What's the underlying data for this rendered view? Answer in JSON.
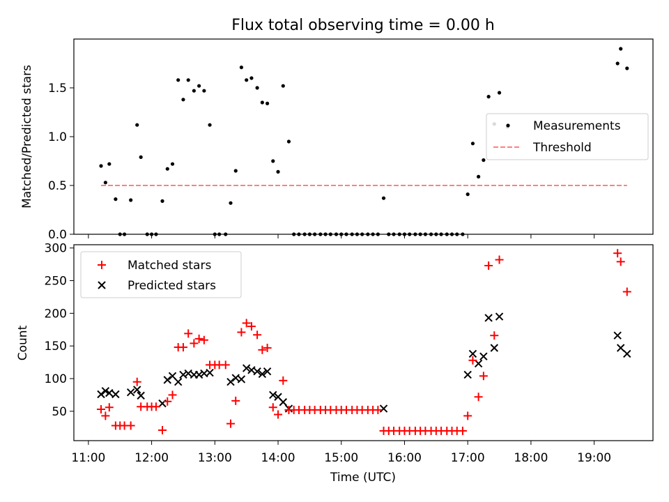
{
  "chart_data": [
    {
      "type": "scatter",
      "title": "Flux total observing time = 0.00 h",
      "xlabel": "",
      "ylabel": "Matched/Predicted stars",
      "ylim": [
        0,
        2.0
      ],
      "yticks": [
        "0.0",
        "0.5",
        "1.0",
        "1.5"
      ],
      "ytick_values": [
        0,
        0.5,
        1.0,
        1.5
      ],
      "legend_placement": "center-right",
      "series": [
        {
          "name": "Measurements",
          "kind": "dot",
          "color": "#000000",
          "points": [
            [
              11.2,
              0.7
            ],
            [
              11.27,
              0.53
            ],
            [
              11.33,
              0.72
            ],
            [
              11.43,
              0.36
            ],
            [
              11.5,
              0
            ],
            [
              11.57,
              0
            ],
            [
              11.67,
              0.35
            ],
            [
              11.77,
              1.12
            ],
            [
              11.83,
              0.79
            ],
            [
              11.93,
              0
            ],
            [
              12.0,
              0
            ],
            [
              12.07,
              0
            ],
            [
              12.17,
              0.34
            ],
            [
              12.25,
              0.67
            ],
            [
              12.33,
              0.72
            ],
            [
              12.42,
              1.58
            ],
            [
              12.5,
              1.38
            ],
            [
              12.58,
              1.58
            ],
            [
              12.67,
              1.47
            ],
            [
              12.75,
              1.52
            ],
            [
              12.83,
              1.47
            ],
            [
              12.92,
              1.12
            ],
            [
              13.0,
              0
            ],
            [
              13.07,
              0
            ],
            [
              13.17,
              0
            ],
            [
              13.25,
              0.32
            ],
            [
              13.33,
              0.65
            ],
            [
              13.42,
              1.71
            ],
            [
              13.5,
              1.58
            ],
            [
              13.58,
              1.6
            ],
            [
              13.67,
              1.5
            ],
            [
              13.75,
              1.35
            ],
            [
              13.83,
              1.34
            ],
            [
              13.92,
              0.75
            ],
            [
              14.0,
              0.64
            ],
            [
              14.08,
              1.52
            ],
            [
              14.17,
              0.95
            ],
            [
              14.25,
              0
            ],
            [
              14.33,
              0
            ],
            [
              14.42,
              0
            ],
            [
              14.5,
              0
            ],
            [
              14.58,
              0
            ],
            [
              14.67,
              0
            ],
            [
              14.75,
              0
            ],
            [
              14.83,
              0
            ],
            [
              14.92,
              0
            ],
            [
              15.0,
              0
            ],
            [
              15.08,
              0
            ],
            [
              15.17,
              0
            ],
            [
              15.25,
              0
            ],
            [
              15.33,
              0
            ],
            [
              15.42,
              0
            ],
            [
              15.5,
              0
            ],
            [
              15.58,
              0
            ],
            [
              15.67,
              0.37
            ],
            [
              15.75,
              0
            ],
            [
              15.83,
              0
            ],
            [
              15.92,
              0
            ],
            [
              16.0,
              0
            ],
            [
              16.08,
              0
            ],
            [
              16.17,
              0
            ],
            [
              16.25,
              0
            ],
            [
              16.33,
              0
            ],
            [
              16.42,
              0
            ],
            [
              16.5,
              0
            ],
            [
              16.58,
              0
            ],
            [
              16.67,
              0
            ],
            [
              16.75,
              0
            ],
            [
              16.83,
              0
            ],
            [
              16.92,
              0
            ],
            [
              17.0,
              0.41
            ],
            [
              17.08,
              0.93
            ],
            [
              17.17,
              0.59
            ],
            [
              17.25,
              0.76
            ],
            [
              17.33,
              1.41
            ],
            [
              17.42,
              1.13
            ],
            [
              17.5,
              1.45
            ],
            [
              17.63,
              1.1
            ],
            [
              19.37,
              1.75
            ],
            [
              19.42,
              1.9
            ],
            [
              19.52,
              1.7
            ]
          ]
        },
        {
          "name": "Threshold",
          "kind": "line",
          "color": "#ff7f7f",
          "x": [
            11.2,
            19.52
          ],
          "y": [
            0.5,
            0.5
          ]
        }
      ]
    },
    {
      "type": "scatter",
      "title": "",
      "xlabel": "Time (UTC)",
      "ylabel": "Count",
      "ylim": [
        5,
        305
      ],
      "yticks": [
        "50",
        "100",
        "150",
        "200",
        "250",
        "300"
      ],
      "ytick_values": [
        50,
        100,
        150,
        200,
        250,
        300
      ],
      "xlim": [
        10.77,
        19.93
      ],
      "xticks": [
        "11:00",
        "12:00",
        "13:00",
        "14:00",
        "15:00",
        "16:00",
        "17:00",
        "18:00",
        "19:00"
      ],
      "xtick_values": [
        11,
        12,
        13,
        14,
        15,
        16,
        17,
        18,
        19
      ],
      "legend_placement": "top-left",
      "series": [
        {
          "name": "Matched stars",
          "kind": "plus",
          "color": "#ff0000",
          "points": [
            [
              11.2,
              53
            ],
            [
              11.27,
              43
            ],
            [
              11.33,
              56
            ],
            [
              11.43,
              28
            ],
            [
              11.5,
              28
            ],
            [
              11.57,
              28
            ],
            [
              11.67,
              28
            ],
            [
              11.77,
              95
            ],
            [
              11.83,
              57
            ],
            [
              11.93,
              57
            ],
            [
              12.0,
              57
            ],
            [
              12.07,
              57
            ],
            [
              12.17,
              21
            ],
            [
              12.25,
              65
            ],
            [
              12.33,
              75
            ],
            [
              12.42,
              148
            ],
            [
              12.5,
              148
            ],
            [
              12.58,
              169
            ],
            [
              12.67,
              154
            ],
            [
              12.75,
              161
            ],
            [
              12.83,
              159
            ],
            [
              12.92,
              121
            ],
            [
              13.0,
              121
            ],
            [
              13.07,
              121
            ],
            [
              13.17,
              121
            ],
            [
              13.25,
              31
            ],
            [
              13.33,
              66
            ],
            [
              13.42,
              171
            ],
            [
              13.5,
              185
            ],
            [
              13.58,
              180
            ],
            [
              13.67,
              167
            ],
            [
              13.75,
              144
            ],
            [
              13.83,
              147
            ],
            [
              13.92,
              56
            ],
            [
              14.0,
              45
            ],
            [
              14.08,
              97
            ],
            [
              14.17,
              52
            ],
            [
              14.25,
              52
            ],
            [
              14.33,
              52
            ],
            [
              14.42,
              52
            ],
            [
              14.5,
              52
            ],
            [
              14.58,
              52
            ],
            [
              14.67,
              52
            ],
            [
              14.75,
              52
            ],
            [
              14.83,
              52
            ],
            [
              14.92,
              52
            ],
            [
              15.0,
              52
            ],
            [
              15.08,
              52
            ],
            [
              15.17,
              52
            ],
            [
              15.25,
              52
            ],
            [
              15.33,
              52
            ],
            [
              15.42,
              52
            ],
            [
              15.5,
              52
            ],
            [
              15.58,
              52
            ],
            [
              15.67,
              20
            ],
            [
              15.75,
              20
            ],
            [
              15.83,
              20
            ],
            [
              15.92,
              20
            ],
            [
              16.0,
              20
            ],
            [
              16.08,
              20
            ],
            [
              16.17,
              20
            ],
            [
              16.25,
              20
            ],
            [
              16.33,
              20
            ],
            [
              16.42,
              20
            ],
            [
              16.5,
              20
            ],
            [
              16.58,
              20
            ],
            [
              16.67,
              20
            ],
            [
              16.75,
              20
            ],
            [
              16.83,
              20
            ],
            [
              16.92,
              20
            ],
            [
              17.0,
              43
            ],
            [
              17.08,
              128
            ],
            [
              17.17,
              72
            ],
            [
              17.25,
              104
            ],
            [
              17.33,
              273
            ],
            [
              17.42,
              166
            ],
            [
              17.5,
              282
            ],
            [
              19.37,
              292
            ],
            [
              19.42,
              279
            ],
            [
              19.52,
              233
            ]
          ]
        },
        {
          "name": "Predicted stars",
          "kind": "x",
          "color": "#000000",
          "points": [
            [
              11.2,
              76
            ],
            [
              11.27,
              81
            ],
            [
              11.33,
              78
            ],
            [
              11.43,
              76
            ],
            [
              11.67,
              79
            ],
            [
              11.77,
              83
            ],
            [
              11.83,
              74
            ],
            [
              12.17,
              62
            ],
            [
              12.25,
              98
            ],
            [
              12.33,
              104
            ],
            [
              12.42,
              95
            ],
            [
              12.5,
              106
            ],
            [
              12.58,
              108
            ],
            [
              12.67,
              106
            ],
            [
              12.75,
              106
            ],
            [
              12.83,
              108
            ],
            [
              12.92,
              109
            ],
            [
              13.25,
              95
            ],
            [
              13.33,
              101
            ],
            [
              13.42,
              99
            ],
            [
              13.5,
              116
            ],
            [
              13.58,
              113
            ],
            [
              13.67,
              111
            ],
            [
              13.75,
              107
            ],
            [
              13.83,
              111
            ],
            [
              13.92,
              75
            ],
            [
              14.0,
              72
            ],
            [
              14.08,
              64
            ],
            [
              14.17,
              54
            ],
            [
              15.67,
              54
            ],
            [
              17.0,
              106
            ],
            [
              17.08,
              138
            ],
            [
              17.17,
              123
            ],
            [
              17.25,
              134
            ],
            [
              17.33,
              193
            ],
            [
              17.42,
              147
            ],
            [
              17.5,
              195
            ],
            [
              19.37,
              166
            ],
            [
              19.42,
              147
            ],
            [
              19.52,
              138
            ]
          ]
        }
      ]
    }
  ]
}
